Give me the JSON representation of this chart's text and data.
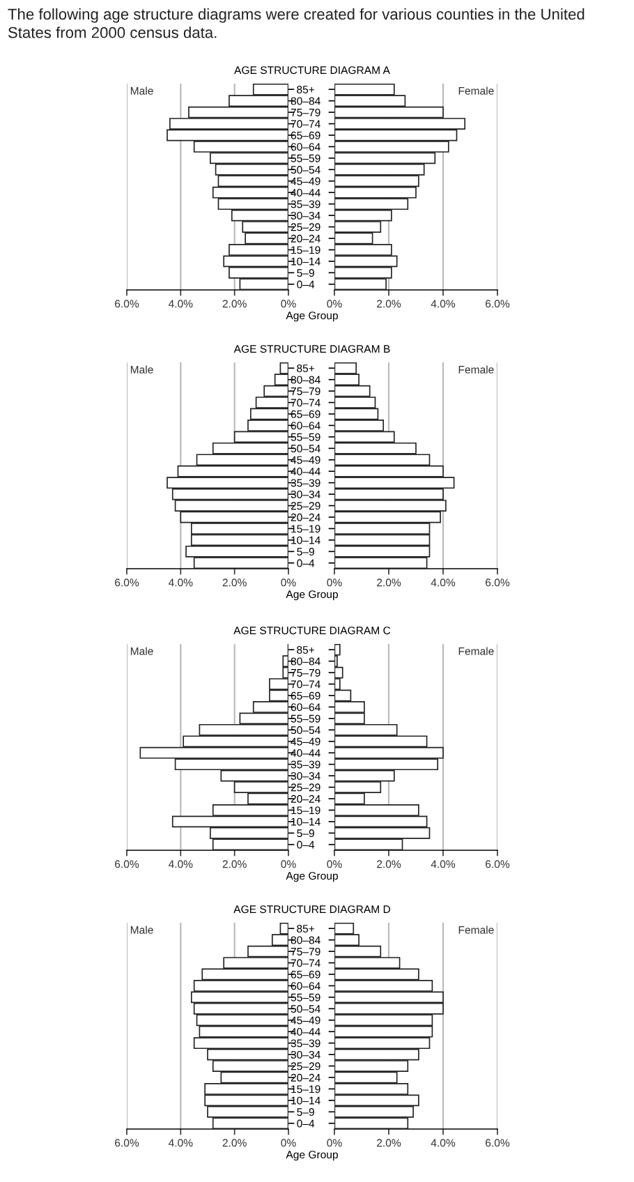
{
  "chart_data": [
    {
      "type": "bar",
      "orientation": "horizontal",
      "title": "AGE STRUCTURE DIAGRAM A",
      "xlabel": "Age Group",
      "annotations": [
        "The following age structure diagrams were created for various counties in the United States from 2000 census data."
      ],
      "categories": [
        null,
        null,
        null,
        null,
        null,
        null,
        null,
        null,
        null,
        null,
        null,
        null,
        null,
        null,
        null,
        null,
        null,
        null
      ],
      "series": [
        {
          "name": "Male",
          "color": "#ffffff",
          "values": [
            1.3,
            2.2,
            3.7,
            4.4,
            4.5,
            3.5,
            2.9,
            2.7,
            2.6,
            2.8,
            2.6,
            2.1,
            1.7,
            1.6,
            2.2,
            2.4,
            2.2,
            1.8
          ]
        }
      ],
      "xlim": [
        6,
        0
      ],
      "xticks": [
        {
          "value": 6,
          "label": "6.0%"
        },
        {
          "value": 4,
          "label": "4.0%"
        },
        {
          "value": 2,
          "label": "2.0%"
        },
        {
          "value": 0,
          "label": "0%"
        }
      ],
      "grid": "x",
      "tick_labels": "x"
    },
    {
      "type": "bar",
      "orientation": "horizontal",
      "categories": [
        "85+",
        "80–84",
        "75–79",
        "70–74",
        "65–69",
        "60–64",
        "55–59",
        "50–54",
        "45–49",
        "40–44",
        "35–39",
        "30–34",
        "25–29",
        "20–24",
        "15–19",
        "10–14",
        "5–9",
        "0–4"
      ],
      "series": [
        {
          "name": "Female",
          "color": "#ffffff",
          "values": [
            2.2,
            2.6,
            4.0,
            4.8,
            4.5,
            4.2,
            3.7,
            3.3,
            3.1,
            3.0,
            2.7,
            2.1,
            1.7,
            1.4,
            2.1,
            2.3,
            2.1,
            1.9
          ]
        }
      ],
      "xlim": [
        0,
        6
      ],
      "xticks": [
        {
          "value": 0,
          "label": "0%"
        },
        {
          "value": 2,
          "label": "2.0%"
        },
        {
          "value": 4,
          "label": "4.0%"
        },
        {
          "value": 6,
          "label": "6.0%"
        }
      ],
      "grid": "x"
    },
    {
      "type": "bar",
      "orientation": "horizontal",
      "title": "AGE STRUCTURE DIAGRAM B",
      "xlabel": "Age Group",
      "categories": [
        null,
        null,
        null,
        null,
        null,
        null,
        null,
        null,
        null,
        null,
        null,
        null,
        null,
        null,
        null,
        null,
        null,
        null
      ],
      "series": [
        {
          "name": "Male",
          "color": "#ffffff",
          "values": [
            0.3,
            0.5,
            0.9,
            1.2,
            1.4,
            1.5,
            2.0,
            2.8,
            3.4,
            4.1,
            4.5,
            4.3,
            4.2,
            4.0,
            3.6,
            3.6,
            3.8,
            3.5
          ]
        }
      ],
      "xlim": [
        6,
        0
      ],
      "xticks": [
        {
          "value": 6,
          "label": "6.0%"
        },
        {
          "value": 4,
          "label": "4.0%"
        },
        {
          "value": 2,
          "label": "2.0%"
        },
        {
          "value": 0,
          "label": "0%"
        }
      ],
      "grid": "x",
      "tick_labels": "x"
    },
    {
      "type": "bar",
      "orientation": "horizontal",
      "categories": [
        "85+",
        "80–84",
        "75–79",
        "70–74",
        "65–69",
        "60–64",
        "55–59",
        "50–54",
        "45–49",
        "40–44",
        "35–39",
        "30–34",
        "25–29",
        "20–24",
        "15–19",
        "10–14",
        "5–9",
        "0–4"
      ],
      "series": [
        {
          "name": "Female",
          "color": "#ffffff",
          "values": [
            0.8,
            0.9,
            1.3,
            1.5,
            1.6,
            1.8,
            2.2,
            3.0,
            3.5,
            4.0,
            4.4,
            4.0,
            4.1,
            3.9,
            3.5,
            3.5,
            3.5,
            3.4
          ]
        }
      ],
      "xlim": [
        0,
        6
      ],
      "xticks": [
        {
          "value": 0,
          "label": "0%"
        },
        {
          "value": 2,
          "label": "2.0%"
        },
        {
          "value": 4,
          "label": "4.0%"
        },
        {
          "value": 6,
          "label": "6.0%"
        }
      ],
      "grid": "x"
    },
    {
      "type": "bar",
      "orientation": "horizontal",
      "title": "AGE STRUCTURE DIAGRAM C",
      "xlabel": "Age Group",
      "categories": [
        null,
        null,
        null,
        null,
        null,
        null,
        null,
        null,
        null,
        null,
        null,
        null,
        null,
        null,
        null,
        null,
        null,
        null
      ],
      "series": [
        {
          "name": "Male",
          "color": "#ffffff",
          "values": [
            0,
            0.2,
            0.2,
            0.7,
            0.7,
            1.3,
            1.8,
            3.3,
            3.9,
            5.5,
            4.2,
            2.5,
            2.0,
            1.5,
            2.8,
            4.3,
            2.9,
            2.8
          ]
        }
      ],
      "xlim": [
        6,
        0
      ],
      "xticks": [
        {
          "value": 6,
          "label": "6.0%"
        },
        {
          "value": 4,
          "label": "4.0%"
        },
        {
          "value": 2,
          "label": "2.0%"
        },
        {
          "value": 0,
          "label": "0%"
        }
      ],
      "grid": "x",
      "tick_labels": "x"
    },
    {
      "type": "bar",
      "orientation": "horizontal",
      "categories": [
        "85+",
        "80–84",
        "75–79",
        "70–74",
        "65–69",
        "60–64",
        "55–59",
        "50–54",
        "45–49",
        "40–44",
        "35–39",
        "30–34",
        "25–29",
        "20–24",
        "15–19",
        "10–14",
        "5–9",
        "0–4"
      ],
      "series": [
        {
          "name": "Female",
          "color": "#ffffff",
          "values": [
            0.2,
            0.1,
            0.3,
            0.2,
            0.6,
            1.1,
            1.1,
            2.3,
            3.4,
            4.0,
            3.8,
            2.2,
            1.7,
            1.1,
            3.1,
            3.4,
            3.5,
            2.5
          ]
        }
      ],
      "xlim": [
        0,
        6
      ],
      "xticks": [
        {
          "value": 0,
          "label": "0%"
        },
        {
          "value": 2,
          "label": "2.0%"
        },
        {
          "value": 4,
          "label": "4.0%"
        },
        {
          "value": 6,
          "label": "6.0%"
        }
      ],
      "grid": "x"
    },
    {
      "type": "bar",
      "orientation": "horizontal",
      "title": "AGE STRUCTURE DIAGRAM D",
      "xlabel": "Age Group",
      "categories": [
        null,
        null,
        null,
        null,
        null,
        null,
        null,
        null,
        null,
        null,
        null,
        null,
        null,
        null,
        null,
        null,
        null,
        null
      ],
      "series": [
        {
          "name": "Male",
          "color": "#ffffff",
          "values": [
            0.3,
            0.6,
            1.5,
            2.4,
            3.2,
            3.5,
            3.6,
            3.5,
            3.4,
            3.3,
            3.5,
            3.0,
            2.8,
            2.5,
            3.1,
            3.1,
            3.0,
            2.8
          ]
        }
      ],
      "xlim": [
        6,
        0
      ],
      "xticks": [
        {
          "value": 6,
          "label": "6.0%"
        },
        {
          "value": 4,
          "label": "4.0%"
        },
        {
          "value": 2,
          "label": "2.0%"
        },
        {
          "value": 0,
          "label": "0%"
        }
      ],
      "grid": "x",
      "tick_labels": "x"
    },
    {
      "type": "bar",
      "orientation": "horizontal",
      "categories": [
        "85+",
        "80–84",
        "75–79",
        "70–74",
        "65–69",
        "60–64",
        "55–59",
        "50–54",
        "45–49",
        "40–44",
        "35–39",
        "30–34",
        "25–29",
        "20–24",
        "15–19",
        "10–14",
        "5–9",
        "0–4"
      ],
      "series": [
        {
          "name": "Female",
          "color": "#ffffff",
          "values": [
            0.7,
            0.9,
            1.7,
            2.4,
            3.1,
            3.6,
            4.0,
            4.0,
            3.6,
            3.6,
            3.5,
            3.1,
            2.7,
            2.3,
            2.7,
            3.1,
            2.9,
            2.7
          ]
        }
      ],
      "xlim": [
        0,
        6
      ],
      "xticks": [
        {
          "value": 0,
          "label": "0%"
        },
        {
          "value": 2,
          "label": "2.0%"
        },
        {
          "value": 4,
          "label": "4.0%"
        },
        {
          "value": 6,
          "label": "6.0%"
        }
      ],
      "grid": "x"
    }
  ]
}
